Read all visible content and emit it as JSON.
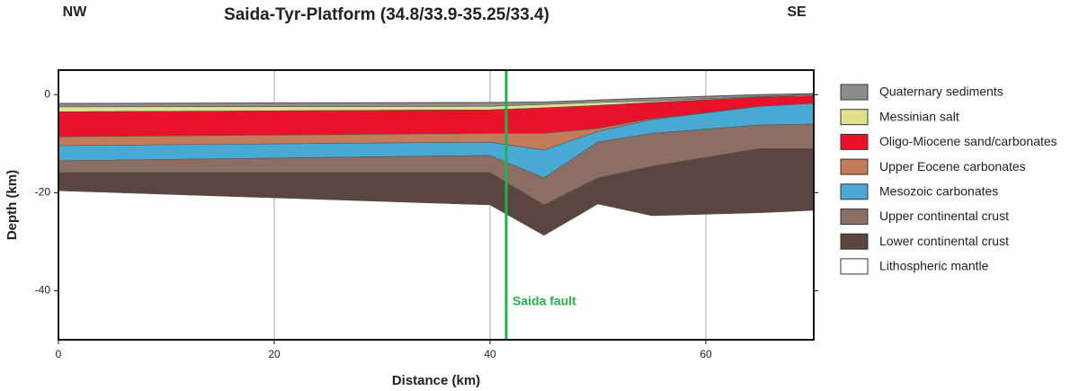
{
  "chart_data": {
    "type": "stacked-section",
    "title": "Saida-Tyr-Platform (34.8/33.9-35.25/33.4)",
    "left_label": "NW",
    "right_label": "SE",
    "x_label": "Distance (km)",
    "y_label": "Depth (km)",
    "xlim": [
      0,
      70
    ],
    "ylim": [
      -50,
      5
    ],
    "xticks": [
      0,
      20,
      40,
      60
    ],
    "yticks": [
      0,
      -20,
      -40
    ],
    "grid": true,
    "legend": "right",
    "x": [
      0,
      40,
      45,
      50,
      55,
      65,
      70
    ],
    "top": [
      -1.8,
      -1.6,
      -1.5,
      -1.1,
      -0.7,
      0,
      0.2
    ],
    "series": [
      {
        "name": "Quaternary sediments",
        "color": "#8c8c8c",
        "values": [
          0.7,
          0.8,
          0.5,
          0.5,
          0.6,
          0.4,
          0.2
        ]
      },
      {
        "name": "Messinian salt",
        "color": "#e2e08c",
        "values": [
          1.0,
          0.7,
          0.7,
          0.6,
          0.3,
          0.1,
          0.2
        ]
      },
      {
        "name": "Oligo-Miocene  sand/carbonates",
        "color": "#e8132b",
        "values": [
          5.1,
          4.8,
          5.2,
          4.7,
          3.3,
          1.9,
          1.6
        ]
      },
      {
        "name": "Upper Eocene carbonates",
        "color": "#c27c5a",
        "values": [
          1.8,
          1.8,
          3.4,
          0.6,
          0.2,
          0,
          0
        ]
      },
      {
        "name": "Mesozoic carbonates",
        "color": "#4aa9d3",
        "values": [
          3.1,
          2.7,
          5.7,
          2.2,
          2.8,
          3.8,
          4.2
        ]
      },
      {
        "name": "Upper continental crust",
        "color": "#8d6e64",
        "values": [
          2.4,
          3.5,
          5.5,
          7.3,
          6.7,
          4.8,
          5.0
        ]
      },
      {
        "name": "Lower continental crust",
        "color": "#5a4540",
        "values": [
          3.7,
          6.6,
          6.2,
          5.3,
          10.1,
          13.1,
          12.6
        ]
      },
      {
        "name": "Lithospheric mantle",
        "color": "#ffffff"
      }
    ],
    "annotation": {
      "text": "Saida fault",
      "x": 41.5,
      "color": "#22b14c"
    }
  }
}
